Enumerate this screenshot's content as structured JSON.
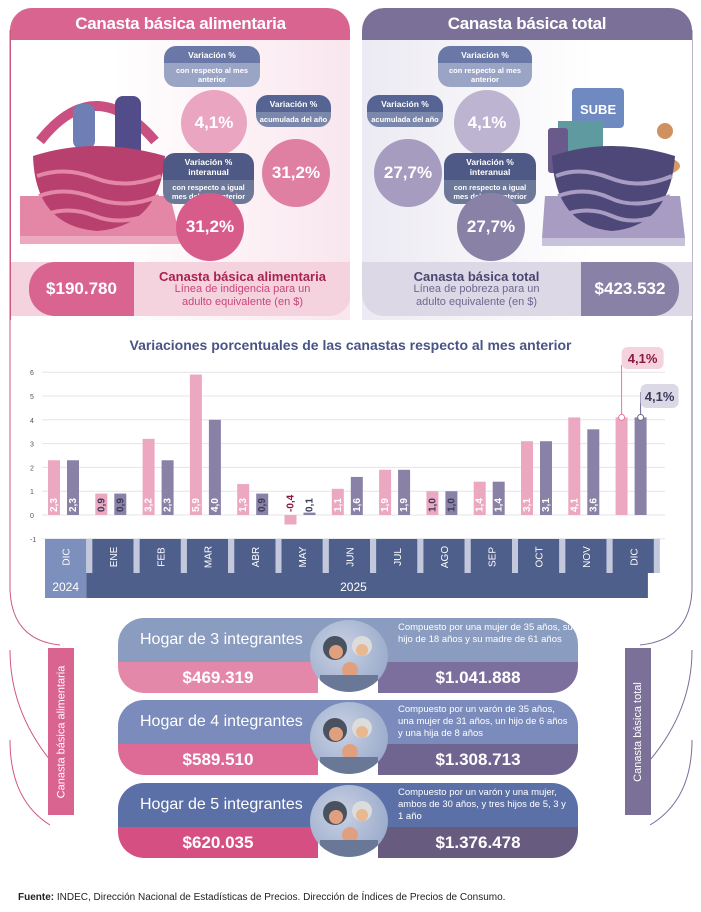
{
  "food": {
    "title": "Canasta básica alimentaria",
    "monthly": {
      "title": "Variación %",
      "sub": "con respecto al mes anterior",
      "value": "4,1%"
    },
    "ytd": {
      "title": "Variación %",
      "sub": "acumulada del año",
      "value": "31,2%"
    },
    "yoy": {
      "title": "Variación % interanual",
      "sub": "con respecto a igual mes del año anterior",
      "value": "31,2%"
    },
    "price": "$190.780",
    "price_title": "Canasta básica alimentaria",
    "price_sub": "Línea de indigencia para un adulto equivalente (en $)"
  },
  "total": {
    "title": "Canasta básica total",
    "monthly": {
      "title": "Variación %",
      "sub": "con respecto al mes anterior",
      "value": "4,1%"
    },
    "ytd": {
      "title": "Variación %",
      "sub": "acumulada del año",
      "value": "27,7%"
    },
    "yoy": {
      "title": "Variación % interanual",
      "sub": "con respecto a igual mes del año anterior",
      "value": "27,7%"
    },
    "price": "$423.532",
    "price_title": "Canasta básica total",
    "price_sub": "Línea de pobreza para un adulto equivalente (en $)",
    "basket_card": "SUBE"
  },
  "chart_data": {
    "type": "bar",
    "title": "Variaciones porcentuales de las canastas respecto al mes anterior",
    "categories": [
      "DIC",
      "ENE",
      "FEB",
      "MAR",
      "ABR",
      "MAY",
      "JUN",
      "JUL",
      "AGO",
      "SEP",
      "OCT",
      "NOV",
      "DIC"
    ],
    "years": [
      {
        "label": "2024",
        "span": 1
      },
      {
        "label": "2025",
        "span": 12
      }
    ],
    "ylim": [
      -1,
      6
    ],
    "yticks": [
      "-1",
      "0",
      "1",
      "2",
      "3",
      "4",
      "5",
      "6"
    ],
    "series": [
      {
        "name": "Canasta básica alimentaria",
        "color": "#eba8c0",
        "values": [
          2.3,
          0.9,
          3.2,
          5.9,
          1.3,
          -0.4,
          1.1,
          1.9,
          1.0,
          1.4,
          3.1,
          4.1,
          4.1
        ],
        "labels": [
          "2,3",
          "0,9",
          "3,2",
          "5,9",
          "1,3",
          "-0,4",
          "1,1",
          "1,9",
          "1,0",
          "1,4",
          "3,1",
          "4,1",
          ""
        ]
      },
      {
        "name": "Canasta básica total",
        "color": "#8a82a6",
        "values": [
          2.3,
          0.9,
          2.3,
          4.0,
          0.9,
          0.1,
          1.6,
          1.9,
          1.0,
          1.4,
          3.1,
          3.6,
          4.1
        ],
        "labels": [
          "2,3",
          "0,9",
          "2,3",
          "4,0",
          "0,9",
          "0,1",
          "1,6",
          "1,9",
          "1,0",
          "1,4",
          "3,1",
          "3,6",
          ""
        ]
      }
    ],
    "callouts": [
      "4,1%",
      "4,1%"
    ]
  },
  "households": [
    {
      "name": "Hogar de 3 integrantes",
      "cba": "$469.319",
      "cbt": "$1.041.888",
      "desc": "Compuesto por una mujer de 35 años, su hijo de 18 años y su madre de 61 años"
    },
    {
      "name": "Hogar de 4 integrantes",
      "cba": "$589.510",
      "cbt": "$1.308.713",
      "desc": "Compuesto por un varón de 35 años, una mujer de 31 años, un hijo de 6 años y una hija de 8 años"
    },
    {
      "name": "Hogar de 5 integrantes",
      "cba": "$620.035",
      "cbt": "$1.376.478",
      "desc": "Compuesto por un varón y una mujer, ambos de 30 años, y tres hijos de 5, 3 y 1 año"
    }
  ],
  "side_left": "Canasta básica alimentaria",
  "side_right": "Canasta básica total",
  "footer": {
    "bold": "Fuente:",
    "text": " INDEC, Dirección Nacional de Estadísticas de Precios. Dirección de Índices de Precios de Consumo."
  }
}
